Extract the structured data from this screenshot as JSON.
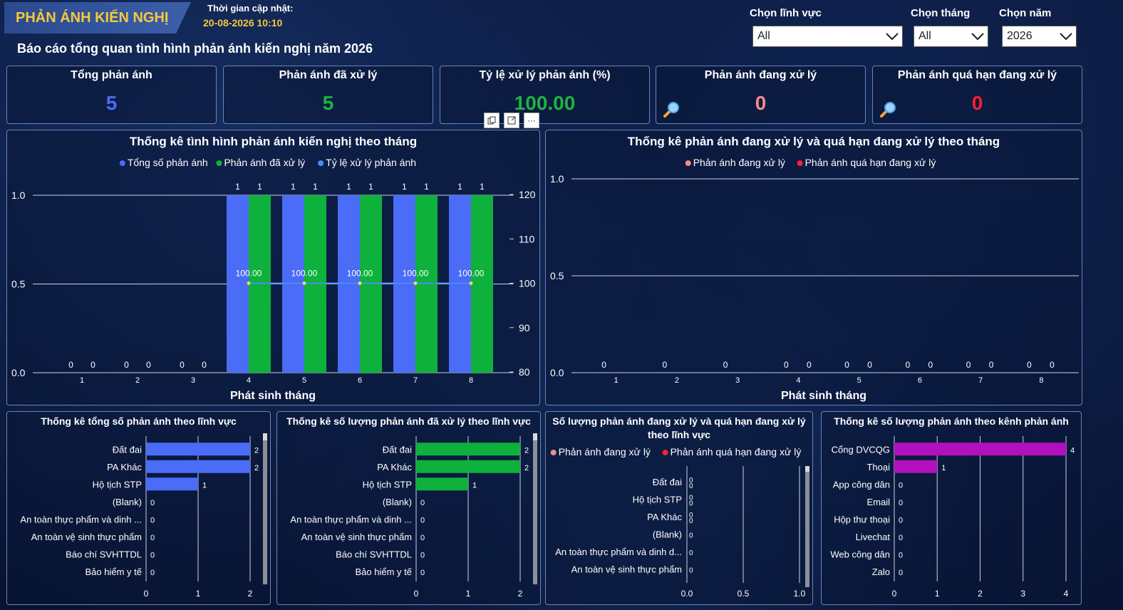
{
  "header": {
    "app_title": "PHẢN ÁNH KIẾN NGHỊ",
    "update_label": "Thời gian cập nhật:",
    "update_time": "20-08-2026 10:10",
    "subtitle": "Báo cáo tổng quan tình hình phản ánh kiến nghị năm 2026"
  },
  "filters": {
    "field": {
      "label": "Chọn lĩnh vực",
      "value": "All"
    },
    "month": {
      "label": "Chọn tháng",
      "value": "All"
    },
    "year": {
      "label": "Chọn năm",
      "value": "2026"
    }
  },
  "kpis": [
    {
      "title": "Tổng phản ánh",
      "value": "5",
      "color": "#4a6cf7"
    },
    {
      "title": "Phản ánh đã xử lý",
      "value": "5",
      "color": "#1db33f"
    },
    {
      "title": "Tỷ lệ xử lý phản ánh (%)",
      "value": "100.00",
      "color": "#1db33f"
    },
    {
      "title": "Phản ánh đang xử lý",
      "value": "0",
      "color": "#f08b8b"
    },
    {
      "title": "Phản ánh quá hạn đang xử lý",
      "value": "0",
      "color": "#ff1f2d"
    }
  ],
  "visual_toolbar": {
    "copy_icon": "copy-icon",
    "focus_icon": "focus-mode-icon",
    "more": "⋯"
  },
  "chart_data": [
    {
      "type": "bar",
      "title": "Thống kê tình hình phản ánh kiến nghị theo tháng",
      "xlabel": "Phát sinh tháng",
      "categories": [
        "1",
        "2",
        "3",
        "4",
        "5",
        "6",
        "7",
        "8"
      ],
      "ylim": [
        0,
        1.0
      ],
      "y_ticks": [
        "0.0",
        "0.5",
        "1.0"
      ],
      "y2lim": [
        80,
        120
      ],
      "y2_ticks": [
        "80",
        "90",
        "100",
        "110",
        "120"
      ],
      "series": [
        {
          "name": "Tổng số phản ánh",
          "color": "#4a6cf7",
          "values": [
            0,
            0,
            0,
            1,
            1,
            1,
            1,
            1
          ]
        },
        {
          "name": "Phản ánh đã xử lý",
          "color": "#0db13b",
          "values": [
            0,
            0,
            0,
            1,
            1,
            1,
            1,
            1
          ]
        },
        {
          "name": "Tỷ lệ xử lý phản ánh",
          "color": "#4a8cf7",
          "type": "line",
          "values": [
            null,
            null,
            null,
            100,
            100,
            100,
            100,
            100
          ],
          "labels": [
            "",
            "",
            "",
            "100.00",
            "100.00",
            "100.00",
            "100.00",
            "100.00"
          ]
        }
      ],
      "legend": "top-center"
    },
    {
      "type": "bar",
      "title": "Thống kê phản ánh đang xử lý và quá hạn đang xử lý theo tháng",
      "xlabel": "Phát sinh tháng",
      "categories": [
        "1",
        "2",
        "3",
        "4",
        "5",
        "6",
        "7",
        "8"
      ],
      "ylim": [
        0,
        1.0
      ],
      "y_ticks": [
        "0.0",
        "0.5",
        "1.0"
      ],
      "series": [
        {
          "name": "Phản ánh đang xử lý",
          "color": "#f08b8b",
          "values": [
            0,
            0,
            0,
            0,
            0,
            0,
            0,
            0
          ]
        },
        {
          "name": "Phản ánh quá hạn đang xử lý",
          "color": "#ff1f2d",
          "values": [
            0,
            0,
            0,
            0,
            0,
            0,
            0,
            0
          ]
        }
      ],
      "legend": "top-center"
    },
    {
      "type": "bar",
      "orientation": "horizontal",
      "title": "Thống kê tổng số phản ánh theo lĩnh vực",
      "categories": [
        "Đất đai",
        "PA Khác",
        "Hộ tịch STP",
        "(Blank)",
        "An toàn thực phẩm và dinh ...",
        "An toàn vệ sinh thực phẩm",
        "Báo chí SVHTTDL",
        "Bảo hiểm y tế"
      ],
      "values": [
        2,
        2,
        1,
        0,
        0,
        0,
        0,
        0
      ],
      "color": "#4a6cf7",
      "xlim": [
        0,
        2
      ],
      "x_ticks": [
        "0",
        "1",
        "2"
      ]
    },
    {
      "type": "bar",
      "orientation": "horizontal",
      "title": "Thống kê số lượng phản ánh đã xử lý theo lĩnh vực",
      "categories": [
        "Đất đai",
        "PA Khác",
        "Hộ tịch STP",
        "(Blank)",
        "An toàn thực phẩm và dinh ...",
        "An toàn vệ sinh thực phẩm",
        "Báo chí SVHTTDL",
        "Bảo hiểm y tế"
      ],
      "values": [
        2,
        2,
        1,
        0,
        0,
        0,
        0,
        0
      ],
      "color": "#0db13b",
      "xlim": [
        0,
        2
      ],
      "x_ticks": [
        "0",
        "1",
        "2"
      ]
    },
    {
      "type": "bar",
      "orientation": "horizontal",
      "title_line1": "Số lượng phản ánh đang xử lý và quá hạn đang xử lý",
      "title_line2": "theo lĩnh vực",
      "categories": [
        "Đất đai",
        "Hộ tịch STP",
        "PA Khác",
        "(Blank)",
        "An toàn thực phẩm và dinh d...",
        "An toàn vệ sinh thực phẩm"
      ],
      "series": [
        {
          "name": "Phản ánh đang xử lý",
          "color": "#f08b8b",
          "values": [
            0,
            0,
            0,
            0,
            0,
            0
          ]
        },
        {
          "name": "Phản ánh quá hạn đang xử lý",
          "color": "#ff1f2d",
          "values": [
            0,
            0,
            0,
            null,
            null,
            null
          ]
        }
      ],
      "xlim": [
        0,
        1.0
      ],
      "x_ticks": [
        "0.0",
        "0.5",
        "1.0"
      ],
      "legend": "top-center"
    },
    {
      "type": "bar",
      "orientation": "horizontal",
      "title": "Thống kê số lượng phản ánh theo kênh phản ánh",
      "categories": [
        "Cổng DVCQG",
        "Thoại",
        "App công dân",
        "Email",
        "Hộp thư thoại",
        "Livechat",
        "Web công dân",
        "Zalo"
      ],
      "values": [
        4,
        1,
        0,
        0,
        0,
        0,
        0,
        0
      ],
      "color": "#b20fbf",
      "xlim": [
        0,
        4
      ],
      "x_ticks": [
        "0",
        "1",
        "2",
        "3",
        "4"
      ]
    }
  ]
}
